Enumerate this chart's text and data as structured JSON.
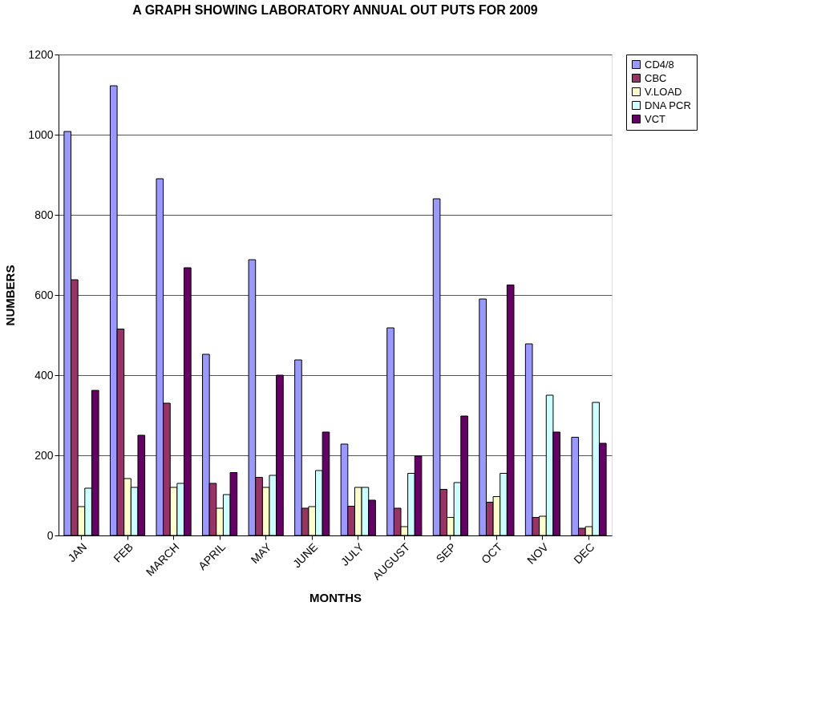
{
  "chart_data": {
    "type": "bar",
    "title": "A GRAPH SHOWING LABORATORY ANNUAL OUT PUTS FOR 2009",
    "xlabel": "MONTHS",
    "ylabel": "NUMBERS",
    "categories": [
      "JAN",
      "FEB",
      "MARCH",
      "APRIL",
      "MAY",
      "JUNE",
      "JULY",
      "AUGUST",
      "SEP",
      "OCT",
      "NOV",
      "DEC"
    ],
    "series": [
      {
        "name": "CD4/8",
        "color": "#9999ff",
        "values": [
          1008,
          1122,
          890,
          452,
          688,
          438,
          228,
          518,
          840,
          590,
          478,
          245
        ]
      },
      {
        "name": "CBC",
        "color": "#993366",
        "values": [
          638,
          515,
          330,
          130,
          145,
          68,
          73,
          68,
          115,
          83,
          45,
          18
        ]
      },
      {
        "name": "V.LOAD",
        "color": "#ffffcc",
        "values": [
          72,
          142,
          120,
          68,
          120,
          72,
          120,
          22,
          45,
          97,
          48,
          22
        ]
      },
      {
        "name": "DNA PCR",
        "color": "#ccffff",
        "values": [
          118,
          120,
          130,
          102,
          150,
          162,
          120,
          155,
          132,
          155,
          350,
          332
        ]
      },
      {
        "name": "VCT",
        "color": "#660066",
        "values": [
          362,
          250,
          668,
          157,
          400,
          258,
          88,
          198,
          298,
          625,
          258,
          230
        ]
      }
    ],
    "ylim": [
      0,
      1200
    ],
    "yticks": [
      0,
      200,
      400,
      600,
      800,
      1000,
      1200
    ],
    "grid": "y",
    "legend": "right"
  }
}
